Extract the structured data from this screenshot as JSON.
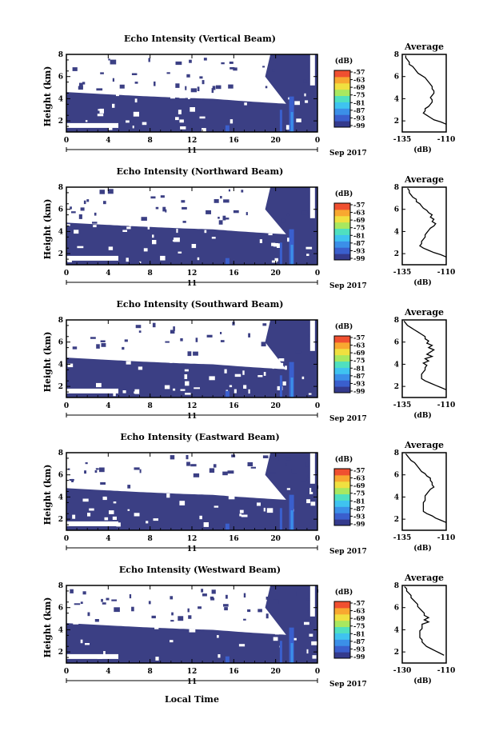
{
  "figure": {
    "xlabel": "Local Time",
    "date_label": "Sep 2017",
    "day_label": "11",
    "colors": {
      "background_echo": "#3b3f84",
      "no_echo": "#ffffff",
      "colormap": [
        "#343a8c",
        "#3a5fcd",
        "#3b8fe8",
        "#3fc3f0",
        "#4fe0c0",
        "#a8e860",
        "#f0e040",
        "#f8a830",
        "#f05030"
      ]
    }
  },
  "chart_data": [
    {
      "type": "heatmap",
      "title": "Echo Intensity (Vertical Beam)",
      "ylabel": "Height (km)",
      "xlim": [
        0,
        24
      ],
      "ylim": [
        1,
        8
      ],
      "x_ticks": [
        "0",
        "4",
        "8",
        "12",
        "16",
        "20",
        "0"
      ],
      "y_ticks": [
        "2",
        "4",
        "6",
        "8"
      ],
      "colorbar": {
        "unit": "(dB)",
        "ticks": [
          "-57",
          "-63",
          "-69",
          "-75",
          "-81",
          "-87",
          "-93",
          "-99"
        ]
      },
      "average": {
        "type": "line",
        "title": "Average",
        "xlabel": "(dB)",
        "xlim": [
          -135,
          -110
        ],
        "ylim": [
          1,
          8
        ],
        "x_ticks": [
          "-135",
          "-110"
        ],
        "y_ticks": [
          "2",
          "4",
          "6",
          "8"
        ],
        "x": [
          -133,
          -133,
          -132,
          -131,
          -131,
          -129,
          -128,
          -127,
          -126,
          -124,
          -122,
          -121,
          -120,
          -119,
          -118,
          -118,
          -117,
          -117,
          -118,
          -119,
          -118,
          -118,
          -119,
          -120,
          -122,
          -122,
          -123,
          -121,
          -119,
          -117,
          -113,
          -110
        ],
        "y": [
          7.9,
          7.7,
          7.5,
          7.3,
          7.1,
          6.9,
          6.7,
          6.5,
          6.3,
          6.1,
          5.9,
          5.7,
          5.5,
          5.3,
          5.1,
          4.9,
          4.7,
          4.5,
          4.3,
          4.1,
          3.9,
          3.7,
          3.5,
          3.3,
          3.1,
          2.9,
          2.7,
          2.5,
          2.3,
          2.1,
          1.9,
          1.7
        ]
      }
    },
    {
      "type": "heatmap",
      "title": "Echo Intensity (Northward Beam)",
      "ylabel": "Height (km)",
      "xlim": [
        0,
        24
      ],
      "ylim": [
        1,
        8
      ],
      "x_ticks": [
        "0",
        "4",
        "8",
        "12",
        "16",
        "20",
        "0"
      ],
      "y_ticks": [
        "2",
        "4",
        "6",
        "8"
      ],
      "colorbar": {
        "unit": "(dB)",
        "ticks": [
          "-57",
          "-63",
          "-69",
          "-75",
          "-81",
          "-87",
          "-93",
          "-99"
        ]
      },
      "average": {
        "type": "line",
        "title": "Average",
        "xlabel": "(dB)",
        "xlim": [
          -135,
          -110
        ],
        "ylim": [
          1,
          8
        ],
        "x_ticks": [
          "-135",
          "-110"
        ],
        "y_ticks": [
          "2",
          "4",
          "6",
          "8"
        ],
        "x": [
          -132,
          -131,
          -131,
          -130,
          -129,
          -127,
          -127,
          -125,
          -124,
          -123,
          -121,
          -120,
          -118,
          -119,
          -117,
          -118,
          -116,
          -117,
          -119,
          -120,
          -121,
          -122,
          -122,
          -123,
          -124,
          -124,
          -125,
          -123,
          -120,
          -117,
          -113,
          -110
        ],
        "y": [
          7.9,
          7.7,
          7.5,
          7.3,
          7.1,
          6.9,
          6.7,
          6.5,
          6.3,
          6.1,
          5.9,
          5.7,
          5.5,
          5.3,
          5.1,
          4.9,
          4.7,
          4.5,
          4.3,
          4.1,
          3.9,
          3.7,
          3.5,
          3.3,
          3.1,
          2.9,
          2.7,
          2.5,
          2.3,
          2.1,
          1.9,
          1.7
        ]
      }
    },
    {
      "type": "heatmap",
      "title": "Echo Intensity (Southward Beam)",
      "ylabel": "Height (km)",
      "xlim": [
        0,
        24
      ],
      "ylim": [
        1,
        8
      ],
      "x_ticks": [
        "0",
        "4",
        "8",
        "12",
        "16",
        "20",
        "0"
      ],
      "y_ticks": [
        "2",
        "4",
        "6",
        "8"
      ],
      "colorbar": {
        "unit": "(dB)",
        "ticks": [
          "-57",
          "-63",
          "-69",
          "-75",
          "-81",
          "-87",
          "-93",
          "-99"
        ]
      },
      "average": {
        "type": "line",
        "title": "Average",
        "xlabel": "(dB)",
        "xlim": [
          -135,
          -110
        ],
        "ylim": [
          1,
          8
        ],
        "x_ticks": [
          "-135",
          "-110"
        ],
        "y_ticks": [
          "2",
          "4",
          "6",
          "8"
        ],
        "x": [
          -134,
          -133,
          -132,
          -130,
          -128,
          -126,
          -124,
          -122,
          -122,
          -120,
          -121,
          -118,
          -120,
          -117,
          -119,
          -121,
          -118,
          -122,
          -120,
          -123,
          -121,
          -122,
          -122,
          -123,
          -124,
          -124,
          -124,
          -122,
          -119,
          -116,
          -113,
          -110
        ],
        "y": [
          7.9,
          7.7,
          7.5,
          7.3,
          7.1,
          6.9,
          6.7,
          6.5,
          6.3,
          6.1,
          5.9,
          5.7,
          5.5,
          5.3,
          5.1,
          4.9,
          4.7,
          4.5,
          4.3,
          4.1,
          3.9,
          3.7,
          3.5,
          3.3,
          3.1,
          2.9,
          2.7,
          2.5,
          2.3,
          2.1,
          1.9,
          1.7
        ]
      }
    },
    {
      "type": "heatmap",
      "title": "Echo Intensity (Eastward Beam)",
      "ylabel": "Height (km)",
      "xlim": [
        0,
        24
      ],
      "ylim": [
        1,
        8
      ],
      "x_ticks": [
        "0",
        "4",
        "8",
        "12",
        "16",
        "20",
        "0"
      ],
      "y_ticks": [
        "2",
        "4",
        "6",
        "8"
      ],
      "colorbar": {
        "unit": "(dB)",
        "ticks": [
          "-57",
          "-63",
          "-69",
          "-75",
          "-81",
          "-87",
          "-93",
          "-99"
        ]
      },
      "average": {
        "type": "line",
        "title": "Average",
        "xlabel": "(dB)",
        "xlim": [
          -135,
          -110
        ],
        "ylim": [
          1,
          8
        ],
        "x_ticks": [
          "-135",
          "-110"
        ],
        "y_ticks": [
          "2",
          "4",
          "6",
          "8"
        ],
        "x": [
          -133,
          -132,
          -131,
          -130,
          -128,
          -127,
          -126,
          -125,
          -124,
          -122,
          -121,
          -119,
          -119,
          -118,
          -118,
          -117,
          -119,
          -120,
          -121,
          -122,
          -122,
          -122,
          -123,
          -123,
          -123,
          -123,
          -123,
          -121,
          -118,
          -116,
          -113,
          -110
        ],
        "y": [
          7.9,
          7.7,
          7.5,
          7.3,
          7.1,
          6.9,
          6.7,
          6.5,
          6.3,
          6.1,
          5.9,
          5.7,
          5.5,
          5.3,
          5.1,
          4.9,
          4.7,
          4.5,
          4.3,
          4.1,
          3.9,
          3.7,
          3.5,
          3.3,
          3.1,
          2.9,
          2.7,
          2.5,
          2.3,
          2.1,
          1.9,
          1.7
        ]
      }
    },
    {
      "type": "heatmap",
      "title": "Echo Intensity (Westward Beam)",
      "ylabel": "Height (km)",
      "xlim": [
        0,
        24
      ],
      "ylim": [
        1,
        8
      ],
      "x_ticks": [
        "0",
        "4",
        "8",
        "12",
        "16",
        "20",
        "0"
      ],
      "y_ticks": [
        "2",
        "4",
        "6",
        "8"
      ],
      "colorbar": {
        "unit": "(dB)",
        "ticks": [
          "-57",
          "-63",
          "-69",
          "-75",
          "-81",
          "-87",
          "-93",
          "-99"
        ]
      },
      "average": {
        "type": "line",
        "title": "Average",
        "xlabel": "(dB)",
        "xlim": [
          -130,
          -110
        ],
        "ylim": [
          1,
          8
        ],
        "x_ticks": [
          "-130",
          "-110"
        ],
        "y_ticks": [
          "2",
          "4",
          "6",
          "8"
        ],
        "x": [
          -129,
          -128,
          -128,
          -127,
          -126,
          -126,
          -125,
          -124,
          -123,
          -123,
          -122,
          -121,
          -120,
          -120,
          -118,
          -120,
          -118,
          -121,
          -121,
          -121,
          -122,
          -122,
          -122,
          -122,
          -121,
          -121,
          -120,
          -119,
          -117,
          -115,
          -113,
          -111
        ],
        "y": [
          7.9,
          7.7,
          7.5,
          7.3,
          7.1,
          6.9,
          6.7,
          6.5,
          6.3,
          6.1,
          5.9,
          5.7,
          5.5,
          5.3,
          5.1,
          4.9,
          4.7,
          4.5,
          4.3,
          4.1,
          3.9,
          3.7,
          3.5,
          3.3,
          3.1,
          2.9,
          2.7,
          2.5,
          2.3,
          2.1,
          1.9,
          1.7
        ]
      }
    }
  ]
}
